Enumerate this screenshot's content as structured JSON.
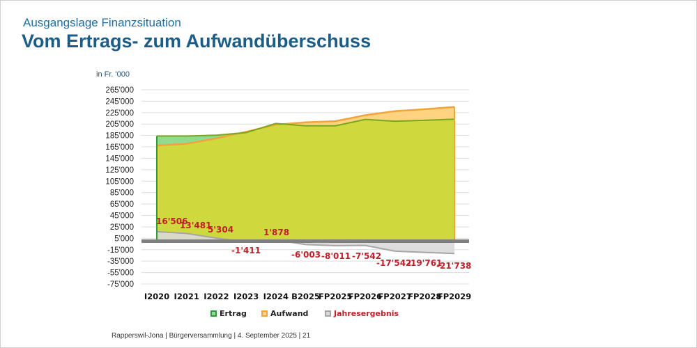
{
  "header": {
    "subtitle": "Ausgangslage Finanzsituation",
    "title": "Vom Ertrags- zum Aufwandüberschuss"
  },
  "footer": {
    "text": "Rapperswil-Jona | Bürgerversammlung | 4. September 2025 | 21"
  },
  "colors": {
    "ertrag_fill": "#cfd83c",
    "ertrag_surplus_fill": "#8fdc8f",
    "ertrag_line": "#7aa61c",
    "aufwand_fill": "#ffd37f",
    "aufwand_line": "#f2a33a",
    "jahresergebnis_fill": "#d9d9d9",
    "jahresergebnis_line": "#a6a6a6",
    "label_red": "#c0202a",
    "grid": "#dcdcdc",
    "zero_line": "#7f7f7f"
  },
  "chart_data": {
    "type": "area",
    "unit_label": "in Fr. '000",
    "categories": [
      "I2020",
      "I2021",
      "I2022",
      "I2023",
      "I2024",
      "B2025",
      "FP2025",
      "FP2026",
      "FP2027",
      "FP2028",
      "FP2029"
    ],
    "ylim": [
      -75000,
      265000
    ],
    "yticks": [
      265000,
      245000,
      225000,
      205000,
      185000,
      165000,
      145000,
      125000,
      105000,
      85000,
      65000,
      45000,
      25000,
      5000,
      -15000,
      -35000,
      -55000,
      -75000
    ],
    "ytick_labels": [
      "265'000",
      "245'000",
      "225'000",
      "205'000",
      "185'000",
      "165'000",
      "145'000",
      "125'000",
      "105'000",
      "85'000",
      "65'000",
      "45'000",
      "25'000",
      "5'000",
      "-15'000",
      "-35'000",
      "-55'000",
      "-75'000"
    ],
    "grid": true,
    "legend_position": "bottom",
    "series": [
      {
        "name": "Ertrag",
        "values": [
          184000,
          184000,
          185500,
          190000,
          206000,
          202000,
          202000,
          213000,
          210000,
          211500,
          213500
        ]
      },
      {
        "name": "Aufwand",
        "values": [
          167500,
          170500,
          180000,
          191500,
          204000,
          208000,
          210000,
          220500,
          227500,
          231000,
          235000
        ]
      },
      {
        "name": "Jahresergebnis",
        "values": [
          16506,
          13481,
          5304,
          -1411,
          1878,
          -6003,
          -8011,
          -7542,
          -17542,
          -19761,
          -21738
        ]
      }
    ],
    "data_labels": [
      "16'506",
      "13'481",
      "5'304",
      "-1'411",
      "1'878",
      "-6'003",
      "-8'011",
      "-7'542",
      "-17'542",
      "-19'761",
      "-21'738"
    ]
  }
}
